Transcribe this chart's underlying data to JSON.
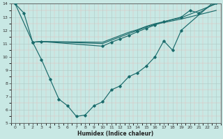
{
  "xlabel": "Humidex (Indice chaleur)",
  "xlim": [
    -0.5,
    23.5
  ],
  "ylim": [
    5,
    14
  ],
  "xticks": [
    0,
    1,
    2,
    3,
    4,
    5,
    6,
    7,
    8,
    9,
    10,
    11,
    12,
    13,
    14,
    15,
    16,
    17,
    18,
    19,
    20,
    21,
    22,
    23
  ],
  "yticks": [
    5,
    6,
    7,
    8,
    9,
    10,
    11,
    12,
    13,
    14
  ],
  "bg_color": "#c8e8e4",
  "line_color": "#1a6b6b",
  "s1_x": [
    0,
    1,
    2,
    3,
    4,
    5,
    6,
    7,
    8,
    9,
    10,
    11,
    12,
    13,
    14,
    15,
    16,
    17,
    18,
    19,
    23
  ],
  "s1_y": [
    14.0,
    13.3,
    11.1,
    9.8,
    8.3,
    6.8,
    6.3,
    5.5,
    5.6,
    6.3,
    6.6,
    7.5,
    7.8,
    8.5,
    8.8,
    9.3,
    10.0,
    11.2,
    10.5,
    12.0,
    14.3
  ],
  "s2_x": [
    0,
    2,
    3,
    10,
    11,
    12,
    13,
    14,
    15,
    16,
    17,
    19,
    20,
    21,
    23
  ],
  "s2_y": [
    14.0,
    11.1,
    11.15,
    10.8,
    11.1,
    11.35,
    11.6,
    11.9,
    12.15,
    12.4,
    12.65,
    13.0,
    13.5,
    13.3,
    14.1
  ],
  "s3_x": [
    2,
    3,
    10,
    11,
    12,
    13,
    14,
    15,
    16,
    19,
    23
  ],
  "s3_y": [
    11.1,
    11.15,
    11.0,
    11.25,
    11.5,
    11.75,
    12.0,
    12.25,
    12.45,
    12.85,
    13.5
  ],
  "s4_x": [
    2,
    3,
    10,
    11,
    12,
    13,
    14,
    15,
    16,
    19,
    23
  ],
  "s4_y": [
    11.1,
    11.15,
    11.1,
    11.35,
    11.6,
    11.85,
    12.05,
    12.3,
    12.5,
    12.95,
    14.0
  ]
}
